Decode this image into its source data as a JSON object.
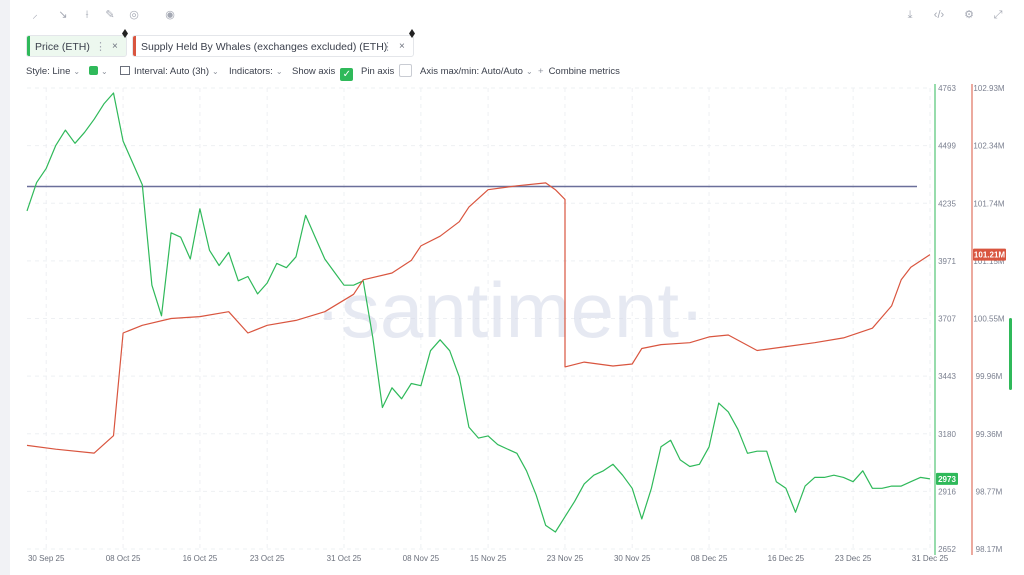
{
  "toolbar": {
    "icons": [
      "brush-icon",
      "arrow-icon",
      "line-tool-icon",
      "pencil-icon",
      "eye-icon",
      "view-icon",
      "download-icon",
      "embed-icon",
      "settings-icon",
      "fullscreen-icon"
    ]
  },
  "metrics": [
    {
      "label": "Price (ETH)",
      "color": "#2fb95a",
      "active": true,
      "more": "⋮",
      "close": "×"
    },
    {
      "label": "Supply Held By Whales (exchanges excluded) (ETH)",
      "color": "#d9553f",
      "active": false,
      "more": "⋮",
      "close": "×"
    }
  ],
  "options": {
    "style_label": "Style: Line",
    "interval_label": "Interval: Auto (3h)",
    "indicators_label": "Indicators:",
    "show_axis_label": "Show axis",
    "pin_axis_label": "Pin axis",
    "axis_label": "Axis max/min: Auto/Auto",
    "combine_label": "Combine metrics",
    "plus": "+",
    "chevron": "⌄",
    "check": "✓"
  },
  "watermark": "·santiment·",
  "chart_data": {
    "type": "line",
    "x_range": [
      "2025-09-28",
      "2025-12-31"
    ],
    "x_ticks": [
      "30 Sep 25",
      "08 Oct 25",
      "16 Oct 25",
      "23 Oct 25",
      "31 Oct 25",
      "08 Nov 25",
      "15 Nov 25",
      "23 Nov 25",
      "30 Nov 25",
      "08 Dec 25",
      "16 Dec 25",
      "23 Dec 25",
      "31 Dec 25"
    ],
    "left_axis": {
      "ticks": [
        "4763",
        "4499",
        "4235",
        "3971",
        "3707",
        "3443",
        "3180",
        "2916",
        "2652"
      ],
      "min": 2652,
      "max": 4763,
      "color": "#2fb95a"
    },
    "right_axis": {
      "ticks": [
        "102.93M",
        "102.34M",
        "101.74M",
        "101.15M",
        "100.55M",
        "99.96M",
        "99.36M",
        "98.77M",
        "98.17M"
      ],
      "min": 98.17,
      "max": 102.93,
      "color": "#d9553f"
    },
    "last_price_label": "2973",
    "last_supply_label": "101.21M",
    "reference_line": {
      "price": 4312,
      "color": "#6a6f9a"
    },
    "grid": true,
    "series": [
      {
        "name": "Price (ETH)",
        "color": "#2fb95a",
        "points": [
          [
            "2025-09-28",
            4200
          ],
          [
            "2025-09-29",
            4330
          ],
          [
            "2025-09-30",
            4395
          ],
          [
            "2025-10-01",
            4500
          ],
          [
            "2025-10-02",
            4570
          ],
          [
            "2025-10-03",
            4510
          ],
          [
            "2025-10-04",
            4560
          ],
          [
            "2025-10-05",
            4620
          ],
          [
            "2025-10-06",
            4690
          ],
          [
            "2025-10-07",
            4740
          ],
          [
            "2025-10-08",
            4520
          ],
          [
            "2025-10-09",
            4420
          ],
          [
            "2025-10-10",
            4320
          ],
          [
            "2025-10-11",
            3860
          ],
          [
            "2025-10-12",
            3720
          ],
          [
            "2025-10-13",
            4100
          ],
          [
            "2025-10-14",
            4080
          ],
          [
            "2025-10-15",
            3980
          ],
          [
            "2025-10-16",
            4210
          ],
          [
            "2025-10-17",
            4020
          ],
          [
            "2025-10-18",
            3950
          ],
          [
            "2025-10-19",
            4010
          ],
          [
            "2025-10-20",
            3880
          ],
          [
            "2025-10-21",
            3900
          ],
          [
            "2025-10-22",
            3820
          ],
          [
            "2025-10-23",
            3870
          ],
          [
            "2025-10-24",
            3960
          ],
          [
            "2025-10-25",
            3940
          ],
          [
            "2025-10-26",
            3990
          ],
          [
            "2025-10-27",
            4180
          ],
          [
            "2025-10-28",
            4080
          ],
          [
            "2025-10-29",
            3980
          ],
          [
            "2025-10-30",
            3920
          ],
          [
            "2025-10-31",
            3860
          ],
          [
            "2025-11-01",
            3860
          ],
          [
            "2025-11-02",
            3880
          ],
          [
            "2025-11-03",
            3620
          ],
          [
            "2025-11-04",
            3300
          ],
          [
            "2025-11-05",
            3390
          ],
          [
            "2025-11-06",
            3340
          ],
          [
            "2025-11-07",
            3410
          ],
          [
            "2025-11-08",
            3400
          ],
          [
            "2025-11-09",
            3560
          ],
          [
            "2025-11-10",
            3610
          ],
          [
            "2025-11-11",
            3560
          ],
          [
            "2025-11-12",
            3440
          ],
          [
            "2025-11-13",
            3210
          ],
          [
            "2025-11-14",
            3160
          ],
          [
            "2025-11-15",
            3170
          ],
          [
            "2025-11-16",
            3130
          ],
          [
            "2025-11-17",
            3110
          ],
          [
            "2025-11-18",
            3090
          ],
          [
            "2025-11-19",
            3010
          ],
          [
            "2025-11-20",
            2900
          ],
          [
            "2025-11-21",
            2760
          ],
          [
            "2025-11-22",
            2730
          ],
          [
            "2025-11-23",
            2800
          ],
          [
            "2025-11-24",
            2870
          ],
          [
            "2025-11-25",
            2950
          ],
          [
            "2025-11-26",
            2990
          ],
          [
            "2025-11-27",
            3010
          ],
          [
            "2025-11-28",
            3040
          ],
          [
            "2025-11-29",
            2990
          ],
          [
            "2025-11-30",
            2930
          ],
          [
            "2025-12-01",
            2790
          ],
          [
            "2025-12-02",
            2930
          ],
          [
            "2025-12-03",
            3120
          ],
          [
            "2025-12-04",
            3150
          ],
          [
            "2025-12-05",
            3060
          ],
          [
            "2025-12-06",
            3030
          ],
          [
            "2025-12-07",
            3040
          ],
          [
            "2025-12-08",
            3120
          ],
          [
            "2025-12-09",
            3320
          ],
          [
            "2025-12-10",
            3280
          ],
          [
            "2025-12-11",
            3200
          ],
          [
            "2025-12-12",
            3090
          ],
          [
            "2025-12-13",
            3100
          ],
          [
            "2025-12-14",
            3100
          ],
          [
            "2025-12-15",
            2960
          ],
          [
            "2025-12-16",
            2930
          ],
          [
            "2025-12-17",
            2820
          ],
          [
            "2025-12-18",
            2940
          ],
          [
            "2025-12-19",
            2980
          ],
          [
            "2025-12-20",
            2980
          ],
          [
            "2025-12-21",
            2990
          ],
          [
            "2025-12-22",
            2980
          ],
          [
            "2025-12-23",
            2960
          ],
          [
            "2025-12-24",
            3010
          ],
          [
            "2025-12-25",
            2930
          ],
          [
            "2025-12-26",
            2930
          ],
          [
            "2025-12-27",
            2940
          ],
          [
            "2025-12-28",
            2940
          ],
          [
            "2025-12-29",
            2960
          ],
          [
            "2025-12-30",
            2980
          ],
          [
            "2025-12-31",
            2973
          ]
        ]
      },
      {
        "name": "Supply Held By Whales (exchanges excluded) (ETH)",
        "color": "#d9553f",
        "points": [
          [
            "2025-09-28",
            99.24
          ],
          [
            "2025-10-01",
            99.2
          ],
          [
            "2025-10-05",
            99.16
          ],
          [
            "2025-10-07",
            99.34
          ],
          [
            "2025-10-08",
            100.4
          ],
          [
            "2025-10-10",
            100.48
          ],
          [
            "2025-10-13",
            100.55
          ],
          [
            "2025-10-16",
            100.57
          ],
          [
            "2025-10-19",
            100.62
          ],
          [
            "2025-10-21",
            100.4
          ],
          [
            "2025-10-23",
            100.48
          ],
          [
            "2025-10-26",
            100.53
          ],
          [
            "2025-10-29",
            100.62
          ],
          [
            "2025-11-01",
            100.8
          ],
          [
            "2025-11-02",
            100.95
          ],
          [
            "2025-11-05",
            101.02
          ],
          [
            "2025-11-07",
            101.15
          ],
          [
            "2025-11-08",
            101.3
          ],
          [
            "2025-11-10",
            101.4
          ],
          [
            "2025-11-12",
            101.55
          ],
          [
            "2025-11-13",
            101.7
          ],
          [
            "2025-11-15",
            101.88
          ],
          [
            "2025-11-18",
            101.92
          ],
          [
            "2025-11-21",
            101.95
          ],
          [
            "2025-11-22",
            101.88
          ],
          [
            "2025-11-23",
            101.78
          ],
          [
            "2025-11-23",
            100.05
          ],
          [
            "2025-11-25",
            100.1
          ],
          [
            "2025-11-28",
            100.06
          ],
          [
            "2025-11-30",
            100.08
          ],
          [
            "2025-12-01",
            100.24
          ],
          [
            "2025-12-03",
            100.28
          ],
          [
            "2025-12-06",
            100.3
          ],
          [
            "2025-12-08",
            100.36
          ],
          [
            "2025-12-10",
            100.38
          ],
          [
            "2025-12-13",
            100.22
          ],
          [
            "2025-12-16",
            100.26
          ],
          [
            "2025-12-19",
            100.3
          ],
          [
            "2025-12-22",
            100.35
          ],
          [
            "2025-12-25",
            100.45
          ],
          [
            "2025-12-27",
            100.68
          ],
          [
            "2025-12-28",
            100.95
          ],
          [
            "2025-12-29",
            101.08
          ],
          [
            "2025-12-31",
            101.21
          ]
        ]
      }
    ]
  }
}
